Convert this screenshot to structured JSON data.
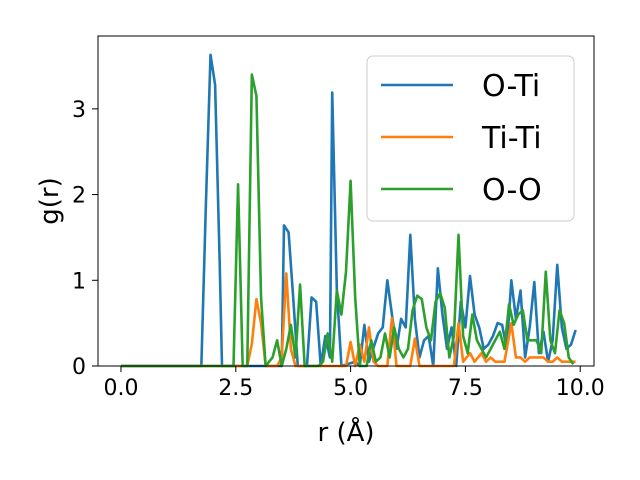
{
  "chart_data": {
    "type": "line",
    "title": "",
    "xlabel": "r (Å)",
    "ylabel": "g(r)",
    "xlim": [
      -0.5,
      10.3
    ],
    "ylim": [
      0,
      3.85
    ],
    "xticks": [
      0.0,
      2.5,
      5.0,
      7.5,
      10.0
    ],
    "xtick_labels": [
      "0.0",
      "2.5",
      "5.0",
      "7.5",
      "10.0"
    ],
    "yticks": [
      0,
      1,
      2,
      3
    ],
    "ytick_labels": [
      "0",
      "1",
      "2",
      "3"
    ],
    "grid": false,
    "legend_position": "top-right",
    "series": [
      {
        "name": "O-Ti",
        "color": "#1f77b4",
        "points": [
          [
            0,
            0
          ],
          [
            1.75,
            0
          ],
          [
            1.85,
            1.9
          ],
          [
            1.95,
            3.63
          ],
          [
            2.05,
            3.28
          ],
          [
            2.15,
            1.2
          ],
          [
            2.2,
            0
          ],
          [
            3.5,
            0
          ],
          [
            3.55,
            1.64
          ],
          [
            3.65,
            1.56
          ],
          [
            3.75,
            0.8
          ],
          [
            3.85,
            0
          ],
          [
            4.05,
            0
          ],
          [
            4.15,
            0.8
          ],
          [
            4.25,
            0.75
          ],
          [
            4.35,
            0
          ],
          [
            4.45,
            0.35
          ],
          [
            4.55,
            0.1
          ],
          [
            4.6,
            3.19
          ],
          [
            4.7,
            0.9
          ],
          [
            4.8,
            0
          ],
          [
            5.1,
            0.05
          ],
          [
            5.2,
            0
          ],
          [
            5.3,
            0.48
          ],
          [
            5.4,
            0.05
          ],
          [
            5.6,
            0.38
          ],
          [
            5.7,
            0.45
          ],
          [
            5.8,
            1.0
          ],
          [
            5.9,
            0.6
          ],
          [
            6.0,
            0.2
          ],
          [
            6.1,
            0.55
          ],
          [
            6.2,
            0.45
          ],
          [
            6.3,
            1.53
          ],
          [
            6.4,
            0.55
          ],
          [
            6.5,
            0.1
          ],
          [
            6.6,
            0.3
          ],
          [
            6.7,
            0.35
          ],
          [
            6.8,
            0.0
          ],
          [
            6.9,
            1.14
          ],
          [
            7.0,
            0.6
          ],
          [
            7.1,
            0.2
          ],
          [
            7.2,
            0.45
          ],
          [
            7.3,
            0.0
          ],
          [
            7.4,
            0.75
          ],
          [
            7.5,
            0.45
          ],
          [
            7.6,
            1.05
          ],
          [
            7.7,
            0.6
          ],
          [
            7.8,
            0.45
          ],
          [
            7.9,
            0.2
          ],
          [
            8.0,
            0.25
          ],
          [
            8.1,
            0.35
          ],
          [
            8.2,
            0.5
          ],
          [
            8.3,
            0.48
          ],
          [
            8.4,
            0.2
          ],
          [
            8.5,
            1.0
          ],
          [
            8.6,
            0.55
          ],
          [
            8.7,
            0.88
          ],
          [
            8.8,
            0.1
          ],
          [
            8.9,
            0.45
          ],
          [
            9.0,
            0.98
          ],
          [
            9.1,
            0.15
          ],
          [
            9.2,
            0.4
          ],
          [
            9.3,
            0.05
          ],
          [
            9.4,
            0.3
          ],
          [
            9.5,
            1.18
          ],
          [
            9.6,
            0.45
          ],
          [
            9.7,
            0.2
          ],
          [
            9.8,
            0.25
          ],
          [
            9.9,
            0.42
          ]
        ]
      },
      {
        "name": "Ti-Ti",
        "color": "#ff7f0e",
        "points": [
          [
            0,
            0
          ],
          [
            2.75,
            0
          ],
          [
            2.85,
            0.26
          ],
          [
            2.95,
            0.78
          ],
          [
            3.05,
            0.5
          ],
          [
            3.15,
            0
          ],
          [
            3.4,
            0
          ],
          [
            3.5,
            0.1
          ],
          [
            3.6,
            1.08
          ],
          [
            3.7,
            0.2
          ],
          [
            3.8,
            0
          ],
          [
            4.9,
            0
          ],
          [
            5.0,
            0.28
          ],
          [
            5.1,
            0
          ],
          [
            5.2,
            0.25
          ],
          [
            5.3,
            0.05
          ],
          [
            5.4,
            0.45
          ],
          [
            5.5,
            0.05
          ],
          [
            5.6,
            0
          ],
          [
            5.8,
            0
          ],
          [
            5.9,
            0.56
          ],
          [
            6.0,
            0
          ],
          [
            6.3,
            0
          ],
          [
            6.4,
            0.32
          ],
          [
            6.5,
            0
          ],
          [
            7.25,
            0
          ],
          [
            7.35,
            0.5
          ],
          [
            7.45,
            0.05
          ],
          [
            7.6,
            0.15
          ],
          [
            7.7,
            0.05
          ],
          [
            7.85,
            0.15
          ],
          [
            7.95,
            0.05
          ],
          [
            8.05,
            0.1
          ],
          [
            8.15,
            0.05
          ],
          [
            8.35,
            0.05
          ],
          [
            8.5,
            0.5
          ],
          [
            8.6,
            0.1
          ],
          [
            8.7,
            0.1
          ],
          [
            8.8,
            0.05
          ],
          [
            8.9,
            0.1
          ],
          [
            9.0,
            0.1
          ],
          [
            9.1,
            0.1
          ],
          [
            9.2,
            0.1
          ],
          [
            9.3,
            0.05
          ],
          [
            9.4,
            0.05
          ],
          [
            9.5,
            0.1
          ],
          [
            9.6,
            0.05
          ],
          [
            9.7,
            0.05
          ],
          [
            9.8,
            0.05
          ],
          [
            9.9,
            0.05
          ]
        ]
      },
      {
        "name": "O-O",
        "color": "#2ca02c",
        "points": [
          [
            0,
            0
          ],
          [
            2.45,
            0
          ],
          [
            2.55,
            2.12
          ],
          [
            2.65,
            0
          ],
          [
            2.75,
            0
          ],
          [
            2.85,
            3.4
          ],
          [
            2.95,
            3.15
          ],
          [
            3.05,
            0.8
          ],
          [
            3.15,
            0
          ],
          [
            3.3,
            0.1
          ],
          [
            3.4,
            0.3
          ],
          [
            3.5,
            0
          ],
          [
            3.6,
            0.2
          ],
          [
            3.7,
            0.48
          ],
          [
            3.8,
            0.1
          ],
          [
            3.9,
            0.95
          ],
          [
            4.0,
            0
          ],
          [
            4.3,
            0
          ],
          [
            4.4,
            0.05
          ],
          [
            4.5,
            0.38
          ],
          [
            4.6,
            0.05
          ],
          [
            4.7,
            0.88
          ],
          [
            4.8,
            0.6
          ],
          [
            4.9,
            1.1
          ],
          [
            5.0,
            2.16
          ],
          [
            5.1,
            0.8
          ],
          [
            5.2,
            0
          ],
          [
            5.35,
            0
          ],
          [
            5.45,
            0.3
          ],
          [
            5.55,
            0.05
          ],
          [
            5.65,
            0.1
          ],
          [
            5.75,
            0.38
          ],
          [
            5.85,
            0.1
          ],
          [
            5.95,
            0.45
          ],
          [
            6.05,
            0.2
          ],
          [
            6.15,
            0.1
          ],
          [
            6.25,
            0.2
          ],
          [
            6.35,
            0.65
          ],
          [
            6.45,
            0.82
          ],
          [
            6.55,
            0.78
          ],
          [
            6.65,
            0.45
          ],
          [
            6.75,
            0.3
          ],
          [
            6.85,
            0.75
          ],
          [
            6.95,
            0.85
          ],
          [
            7.05,
            0.68
          ],
          [
            7.15,
            0.1
          ],
          [
            7.25,
            0.35
          ],
          [
            7.35,
            1.53
          ],
          [
            7.45,
            0.35
          ],
          [
            7.55,
            0.15
          ],
          [
            7.65,
            0.6
          ],
          [
            7.75,
            0.3
          ],
          [
            7.85,
            0.2
          ],
          [
            7.95,
            0.1
          ],
          [
            8.05,
            0.2
          ],
          [
            8.15,
            0.3
          ],
          [
            8.25,
            0.4
          ],
          [
            8.35,
            0.2
          ],
          [
            8.45,
            0.72
          ],
          [
            8.55,
            0.48
          ],
          [
            8.65,
            0.6
          ],
          [
            8.75,
            0.65
          ],
          [
            8.85,
            0.3
          ],
          [
            8.95,
            0.3
          ],
          [
            9.05,
            0.3
          ],
          [
            9.15,
            0.15
          ],
          [
            9.25,
            1.1
          ],
          [
            9.35,
            0.3
          ],
          [
            9.45,
            0.15
          ],
          [
            9.55,
            0.65
          ],
          [
            9.65,
            0.5
          ],
          [
            9.75,
            0.1
          ],
          [
            9.85,
            0.02
          ]
        ]
      }
    ]
  }
}
